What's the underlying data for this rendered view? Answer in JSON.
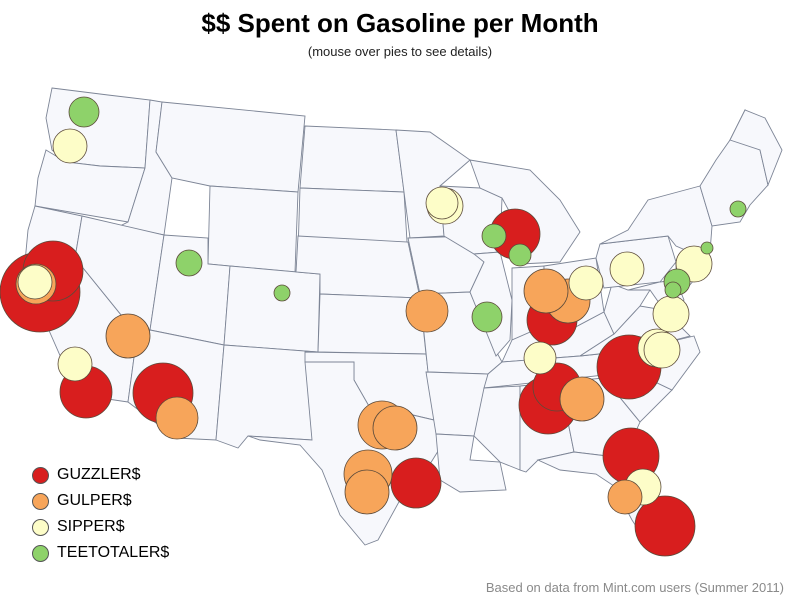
{
  "header": {
    "title": "$$ Spent on Gasoline per Month",
    "subtitle": "(mouse over pies to see details)"
  },
  "footnote": "Based on data from Mint.com users (Summer 2011)",
  "colors": {
    "guzzler": "#d81e1e",
    "gulper": "#f7a55a",
    "sipper": "#fdfdc8",
    "teetotaler": "#8ed26a"
  },
  "legend": [
    {
      "label": "GUZZLER$",
      "category": "guzzler"
    },
    {
      "label": "GULPER$",
      "category": "gulper"
    },
    {
      "label": "SIPPER$",
      "category": "sipper"
    },
    {
      "label": "TEETOTALER$",
      "category": "teetotaler"
    }
  ],
  "cities": [
    {
      "category": "teetotaler",
      "size": 15
    },
    {
      "category": "sipper",
      "size": 17
    },
    {
      "category": "guzzler",
      "size": 40
    },
    {
      "category": "guzzler",
      "size": 30
    },
    {
      "category": "gulper",
      "size": 20
    },
    {
      "category": "sipper",
      "size": 17
    },
    {
      "category": "gulper",
      "size": 22
    },
    {
      "category": "sipper",
      "size": 17
    },
    {
      "category": "guzzler",
      "size": 26
    },
    {
      "category": "guzzler",
      "size": 30
    },
    {
      "category": "gulper",
      "size": 21
    },
    {
      "category": "teetotaler",
      "size": 13
    },
    {
      "category": "teetotaler",
      "size": 8
    },
    {
      "category": "sipper",
      "size": 16
    },
    {
      "category": "guzzler",
      "size": 25
    },
    {
      "category": "teetotaler",
      "size": 12
    },
    {
      "category": "teetotaler",
      "size": 11
    },
    {
      "category": "gulper",
      "size": 21
    },
    {
      "category": "teetotaler",
      "size": 15
    },
    {
      "category": "guzzler",
      "size": 25
    },
    {
      "category": "gulper",
      "size": 22
    },
    {
      "category": "sipper",
      "size": 17
    },
    {
      "category": "gulper",
      "size": 22
    },
    {
      "category": "guzzler",
      "size": 29
    },
    {
      "category": "gulper",
      "size": 22
    },
    {
      "category": "gulper",
      "size": 24
    },
    {
      "category": "gulper",
      "size": 22
    },
    {
      "category": "guzzler",
      "size": 25
    },
    {
      "category": "guzzler",
      "size": 32
    },
    {
      "category": "gulper",
      "size": 24
    },
    {
      "category": "sipper",
      "size": 17
    },
    {
      "category": "sipper",
      "size": 18
    },
    {
      "category": "sipper",
      "size": 19
    },
    {
      "category": "sipper",
      "size": 18
    },
    {
      "category": "guzzler",
      "size": 28
    },
    {
      "category": "sipper",
      "size": 18
    },
    {
      "category": "gulper",
      "size": 17
    },
    {
      "category": "teetotaler",
      "size": 13
    },
    {
      "category": "teetotaler",
      "size": 8
    },
    {
      "category": "sipper",
      "size": 18
    },
    {
      "category": "teetotaler",
      "size": 6
    },
    {
      "category": "teetotaler",
      "size": 8
    },
    {
      "category": "guzzler",
      "size": 30
    },
    {
      "category": "gulper",
      "size": 22
    },
    {
      "category": "sipper",
      "size": 16
    },
    {
      "category": "guzzler",
      "size": 24
    },
    {
      "category": "sipper",
      "size": 18
    }
  ]
}
